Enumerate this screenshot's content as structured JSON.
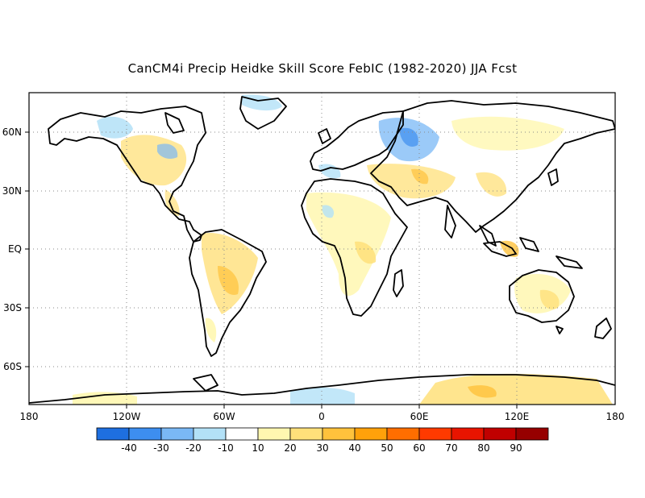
{
  "title": "CanCM4i Precip Heidke Skill Score FebIC (1982-2020) JJA Fcst",
  "map": {
    "lon_labels": [
      "180",
      "120W",
      "60W",
      "0",
      "60E",
      "120E",
      "180"
    ],
    "lat_labels": [
      "60N",
      "30N",
      "EQ",
      "30S",
      "60S"
    ]
  },
  "colorbar": {
    "labels": [
      "-40",
      "-30",
      "-20",
      "-10",
      "10",
      "20",
      "30",
      "40",
      "50",
      "60",
      "70",
      "80",
      "90"
    ],
    "colors": [
      "#1e6fe0",
      "#3d8ef0",
      "#7ab8f5",
      "#b3e1f7",
      "#ffffff",
      "#fff7b0",
      "#ffe07a",
      "#ffc23c",
      "#ffa10a",
      "#ff6e00",
      "#ff3a00",
      "#e81400",
      "#c00000",
      "#960000"
    ]
  }
}
